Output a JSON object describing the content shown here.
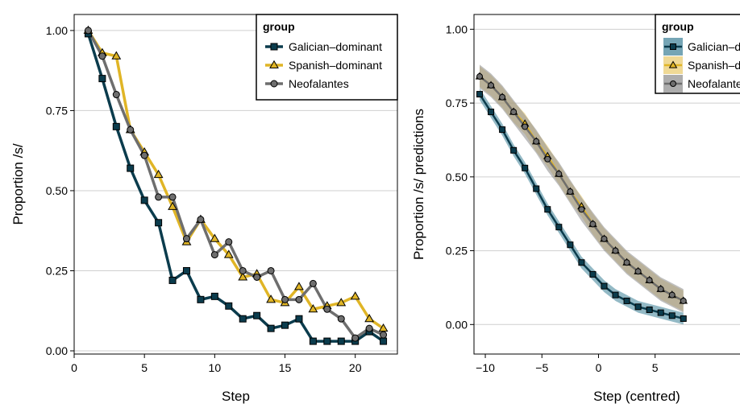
{
  "chart_data": [
    {
      "type": "line",
      "xlabel": "Step",
      "ylabel": "Proportion /s/",
      "xlim": [
        0,
        23
      ],
      "ylim": [
        -0.01,
        1.05
      ],
      "xticks": [
        0,
        5,
        10,
        15,
        20
      ],
      "xtick_labels": [
        "0",
        "5",
        "10",
        "15",
        "20"
      ],
      "yticks": [
        0,
        0.25,
        0.5,
        0.75,
        1.0
      ],
      "ytick_labels": [
        "0.00",
        "0.25",
        "0.50",
        "0.75",
        "1.00"
      ],
      "grid": "horizontal",
      "legend": {
        "title": "group",
        "position": "top-right"
      },
      "x": [
        1,
        2,
        3,
        4,
        5,
        6,
        7,
        8,
        9,
        10,
        11,
        12,
        13,
        14,
        15,
        16,
        17,
        18,
        19,
        20,
        21,
        22
      ],
      "series": [
        {
          "name": "Galician–dominant",
          "color": "#0b3c4d",
          "marker": "square",
          "values": [
            0.99,
            0.85,
            0.7,
            0.57,
            0.47,
            0.4,
            0.22,
            0.25,
            0.16,
            0.17,
            0.14,
            0.1,
            0.11,
            0.07,
            0.08,
            0.1,
            0.03,
            0.03,
            0.03,
            0.03,
            0.06,
            0.03
          ]
        },
        {
          "name": "Spanish–dominant",
          "color": "#e0b526",
          "marker": "triangle",
          "values": [
            1.0,
            0.93,
            0.92,
            0.69,
            0.62,
            0.55,
            0.45,
            0.34,
            0.41,
            0.35,
            0.3,
            0.23,
            0.24,
            0.16,
            0.15,
            0.2,
            0.13,
            0.14,
            0.15,
            0.17,
            0.1,
            0.07
          ]
        },
        {
          "name": "Neofalantes",
          "color": "#6e6e6e",
          "marker": "circle",
          "values": [
            1.0,
            0.92,
            0.8,
            0.69,
            0.61,
            0.48,
            0.48,
            0.35,
            0.41,
            0.3,
            0.34,
            0.25,
            0.23,
            0.25,
            0.16,
            0.16,
            0.21,
            0.13,
            0.1,
            0.04,
            0.07,
            0.05
          ]
        }
      ]
    },
    {
      "type": "line",
      "xlabel": "Step (centred)",
      "ylabel": "Proportion /s/ predictions",
      "xlim": [
        -11,
        12.5
      ],
      "ylim": [
        -0.1,
        1.05
      ],
      "xticks": [
        -10,
        -5,
        0,
        5
      ],
      "xtick_labels": [
        "−10",
        "−5",
        "0",
        "5"
      ],
      "yticks": [
        0,
        0.25,
        0.5,
        0.75,
        1.0
      ],
      "ytick_labels": [
        "0.00",
        "0.25",
        "0.50",
        "0.75",
        "1.00"
      ],
      "grid": "horizontal",
      "legend": {
        "title": "group",
        "position": "top-right"
      },
      "x": [
        -10.5,
        -9.5,
        -8.5,
        -7.5,
        -6.5,
        -5.5,
        -4.5,
        -3.5,
        -2.5,
        -1.5,
        -0.5,
        0.5,
        1.5,
        2.5,
        3.5,
        4.5,
        5.5,
        6.5,
        7.5
      ],
      "series": [
        {
          "name": "Galician–dominant",
          "color": "#0b3c4d",
          "band_color": "#3a7f96",
          "marker": "square",
          "values": [
            0.78,
            0.72,
            0.66,
            0.59,
            0.53,
            0.46,
            0.39,
            0.33,
            0.27,
            0.21,
            0.17,
            0.13,
            0.1,
            0.08,
            0.06,
            0.05,
            0.04,
            0.03,
            0.02
          ],
          "band_halfwidth": 0.02
        },
        {
          "name": "Spanish–dominant",
          "color": "#e0b526",
          "band_color": "#e8c96a",
          "marker": "triangle",
          "values": [
            0.84,
            0.81,
            0.77,
            0.72,
            0.68,
            0.62,
            0.57,
            0.51,
            0.45,
            0.4,
            0.34,
            0.29,
            0.25,
            0.21,
            0.18,
            0.15,
            0.12,
            0.1,
            0.08
          ],
          "band_halfwidth": 0.035
        },
        {
          "name": "Neofalantes",
          "color": "#6e6e6e",
          "band_color": "#8a8a8a",
          "marker": "circle",
          "values": [
            0.84,
            0.81,
            0.77,
            0.72,
            0.67,
            0.62,
            0.56,
            0.51,
            0.45,
            0.39,
            0.34,
            0.29,
            0.25,
            0.21,
            0.18,
            0.15,
            0.12,
            0.1,
            0.08
          ],
          "band_halfwidth": 0.04
        }
      ]
    }
  ]
}
